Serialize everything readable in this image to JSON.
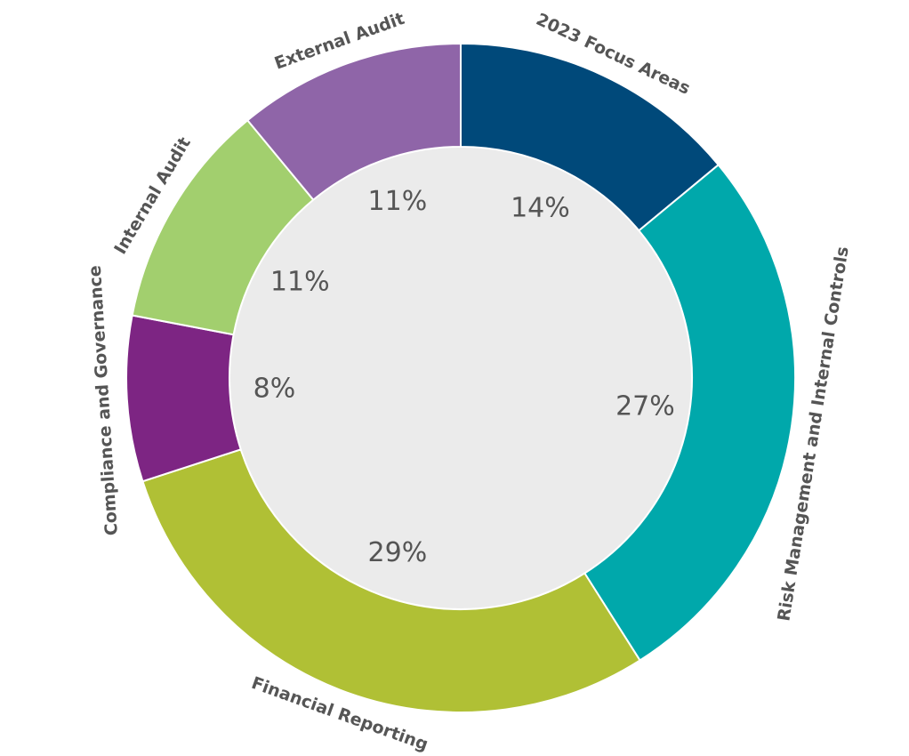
{
  "chart_data": {
    "type": "donut",
    "categories": [
      "2023 Focus Areas",
      "Risk Management and Internal Controls",
      "Financial Reporting",
      "Compliance and Governance",
      "Internal Audit",
      "External Audit"
    ],
    "values": [
      14,
      27,
      29,
      8,
      11,
      11
    ],
    "value_labels": [
      "14%",
      "27%",
      "29%",
      "8%",
      "11%",
      "11%"
    ],
    "colors": [
      "#00497a",
      "#00a8ab",
      "#b0c035",
      "#7d2583",
      "#a2cf6e",
      "#8f65a8"
    ]
  }
}
